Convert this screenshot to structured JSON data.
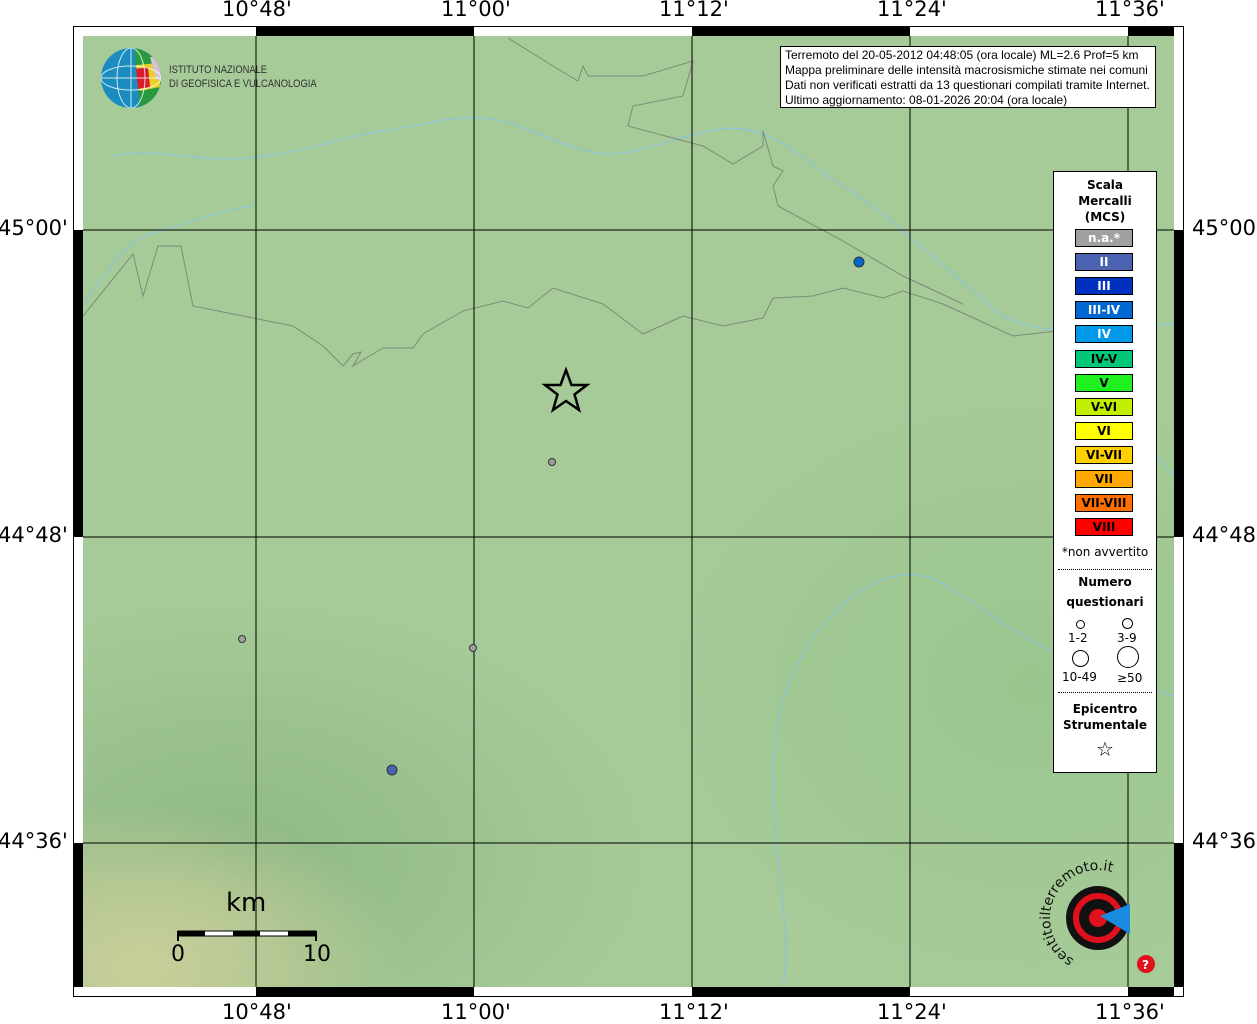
{
  "axes": {
    "lon_ticks": [
      "10°48'",
      "11°00'",
      "11°12'",
      "11°24'",
      "11°36'"
    ],
    "lat_ticks": [
      "45°00'",
      "44°48'",
      "44°36'"
    ]
  },
  "info": {
    "lines": [
      "Terremoto del 20-05-2012 04:48:05 (ora locale) ML=2.6 Prof=5 km",
      "Mappa preliminare delle intensità macrosismiche stimate nei comuni",
      "Dati non verificati estratti da 13 questionari compilati tramite Internet.",
      "Ultimo aggiornamento: 08-01-2026 20:04 (ora locale)"
    ]
  },
  "logo_ingv": {
    "line1": "ISTITUTO NAZIONALE",
    "line2": "DI GEOFISICA E VULCANOLOGIA"
  },
  "logo_hsit": {
    "text": "www.haisentitoilterremoto.it"
  },
  "legend": {
    "title": [
      "Scala",
      "Mercalli",
      "(MCS)"
    ],
    "scale": [
      {
        "label": "n.a.*",
        "color": "#a0a0a0",
        "text": "#ffffff"
      },
      {
        "label": "II",
        "color": "#4a62b0",
        "text": "#ffffff"
      },
      {
        "label": "III",
        "color": "#0030c0",
        "text": "#ffffff"
      },
      {
        "label": "III-IV",
        "color": "#0068d0",
        "text": "#ffffff"
      },
      {
        "label": "IV",
        "color": "#0098e8",
        "text": "#ffffff"
      },
      {
        "label": "IV-V",
        "color": "#00c878",
        "text": "#000000"
      },
      {
        "label": "V",
        "color": "#20f020",
        "text": "#000000"
      },
      {
        "label": "V-VI",
        "color": "#c0f000",
        "text": "#000000"
      },
      {
        "label": "VI",
        "color": "#ffff00",
        "text": "#000000"
      },
      {
        "label": "VI-VII",
        "color": "#ffd000",
        "text": "#000000"
      },
      {
        "label": "VII",
        "color": "#ffa800",
        "text": "#000000"
      },
      {
        "label": "VII-VIII",
        "color": "#ff7000",
        "text": "#000000"
      },
      {
        "label": "VIII",
        "color": "#ff0000",
        "text": "#000000"
      }
    ],
    "note": "*non avvertito",
    "count_title": [
      "Numero",
      "questionari"
    ],
    "count_classes": [
      "1-2",
      "3-9",
      "10-49",
      "≥50"
    ],
    "epicenter_title": [
      "Epicentro",
      "Strumentale"
    ]
  },
  "observations": [
    {
      "intensity": "n.a.*",
      "color": "#a0a0a0"
    },
    {
      "intensity": "n.a.*",
      "color": "#a0a0a0"
    },
    {
      "intensity": "n.a.*",
      "color": "#a0a0a0"
    },
    {
      "intensity": "III-IV",
      "color": "#0068d0"
    },
    {
      "intensity": "II",
      "color": "#4a62b0"
    }
  ],
  "scalebar": {
    "unit": "km",
    "start": "0",
    "end": "10"
  }
}
